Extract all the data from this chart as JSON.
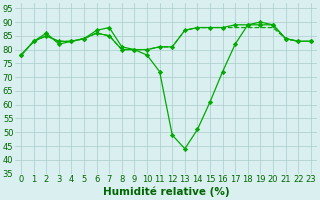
{
  "x": [
    0,
    1,
    2,
    3,
    4,
    5,
    6,
    7,
    8,
    9,
    10,
    11,
    12,
    13,
    14,
    15,
    16,
    17,
    18,
    19,
    20,
    21,
    22,
    23
  ],
  "line1": [
    78,
    83,
    86,
    82,
    83,
    84,
    87,
    88,
    81,
    80,
    78,
    72,
    49,
    44,
    51,
    61,
    72,
    82,
    89,
    90,
    89,
    84,
    83,
    83
  ],
  "line2": [
    78,
    83,
    85,
    83,
    83,
    84,
    86,
    85,
    80,
    80,
    80,
    81,
    81,
    87,
    88,
    88,
    88,
    89,
    89,
    89,
    89,
    84,
    83,
    83
  ],
  "line3": [
    78,
    83,
    85,
    83,
    83,
    84,
    86,
    85,
    80,
    80,
    80,
    81,
    81,
    87,
    88,
    88,
    88,
    88,
    88,
    88,
    88,
    84,
    83,
    83
  ],
  "bg_color": "#daf0f0",
  "grid_color": "#aacccc",
  "line_color": "#00aa00",
  "xlabel": "Humidité relative (%)",
  "xlabel_color": "#006600",
  "xlabel_fontsize": 7.5,
  "tick_color": "#006600",
  "tick_fontsize": 6,
  "ylim": [
    35,
    97
  ],
  "yticks": [
    35,
    40,
    45,
    50,
    55,
    60,
    65,
    70,
    75,
    80,
    85,
    90,
    95
  ],
  "xticks": [
    0,
    1,
    2,
    3,
    4,
    5,
    6,
    7,
    8,
    9,
    10,
    11,
    12,
    13,
    14,
    15,
    16,
    17,
    18,
    19,
    20,
    21,
    22,
    23
  ],
  "marker": "D",
  "markersize": 2.2,
  "linewidth": 0.9
}
